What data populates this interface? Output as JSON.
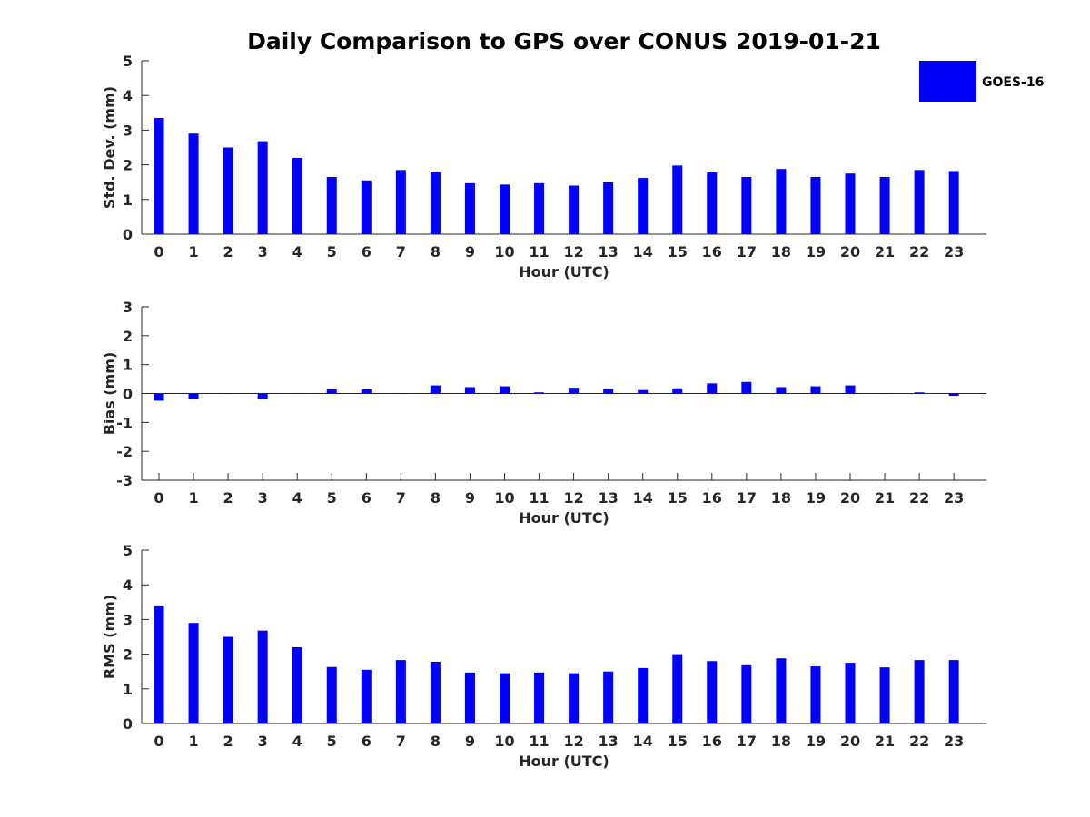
{
  "title": "Daily Comparison to GPS over CONUS 2019-01-21",
  "legend": {
    "label": "GOES-16",
    "color": "#0000ff"
  },
  "bar_color": "#0000ff",
  "chart_data": [
    {
      "type": "bar",
      "series_name": "GOES-16",
      "xlabel": "Hour (UTC)",
      "ylabel": "Std. Dev. (mm)",
      "categories": [
        "0",
        "1",
        "2",
        "3",
        "4",
        "5",
        "6",
        "7",
        "8",
        "9",
        "10",
        "11",
        "12",
        "13",
        "14",
        "15",
        "16",
        "17",
        "18",
        "19",
        "20",
        "21",
        "22",
        "23"
      ],
      "ylim": [
        0,
        5
      ],
      "yticks": [
        0,
        1,
        2,
        3,
        4,
        5
      ],
      "ytick_labels": [
        "0",
        "1",
        "2",
        "3",
        "4",
        "5"
      ],
      "values": [
        3.35,
        2.9,
        2.5,
        2.68,
        2.2,
        1.65,
        1.55,
        1.85,
        1.78,
        1.47,
        1.43,
        1.47,
        1.4,
        1.5,
        1.62,
        1.98,
        1.78,
        1.65,
        1.88,
        1.65,
        1.75,
        1.65,
        1.85,
        1.82
      ]
    },
    {
      "type": "bar",
      "series_name": "GOES-16",
      "xlabel": "Hour (UTC)",
      "ylabel": "Bias (mm)",
      "categories": [
        "0",
        "1",
        "2",
        "3",
        "4",
        "5",
        "6",
        "7",
        "8",
        "9",
        "10",
        "11",
        "12",
        "13",
        "14",
        "15",
        "16",
        "17",
        "18",
        "19",
        "20",
        "21",
        "22",
        "23"
      ],
      "ylim": [
        -3,
        3
      ],
      "yticks": [
        -3,
        -2,
        -1,
        0,
        1,
        2,
        3
      ],
      "ytick_labels": [
        "-3",
        "-2",
        "-1",
        "0",
        "1",
        "2",
        "3"
      ],
      "values": [
        -0.25,
        -0.18,
        -0.01,
        -0.2,
        0.0,
        0.15,
        0.15,
        0.01,
        0.28,
        0.22,
        0.25,
        0.04,
        0.2,
        0.16,
        0.12,
        0.18,
        0.35,
        0.4,
        0.22,
        0.25,
        0.28,
        -0.01,
        0.04,
        -0.08
      ]
    },
    {
      "type": "bar",
      "series_name": "GOES-16",
      "xlabel": "Hour (UTC)",
      "ylabel": "RMS (mm)",
      "categories": [
        "0",
        "1",
        "2",
        "3",
        "4",
        "5",
        "6",
        "7",
        "8",
        "9",
        "10",
        "11",
        "12",
        "13",
        "14",
        "15",
        "16",
        "17",
        "18",
        "19",
        "20",
        "21",
        "22",
        "23"
      ],
      "ylim": [
        0,
        5
      ],
      "yticks": [
        0,
        1,
        2,
        3,
        4,
        5
      ],
      "ytick_labels": [
        "0",
        "1",
        "2",
        "3",
        "4",
        "5"
      ],
      "values": [
        3.38,
        2.9,
        2.5,
        2.68,
        2.2,
        1.63,
        1.55,
        1.83,
        1.78,
        1.47,
        1.45,
        1.47,
        1.45,
        1.5,
        1.6,
        2.0,
        1.8,
        1.68,
        1.88,
        1.65,
        1.75,
        1.62,
        1.83,
        1.83
      ]
    }
  ]
}
